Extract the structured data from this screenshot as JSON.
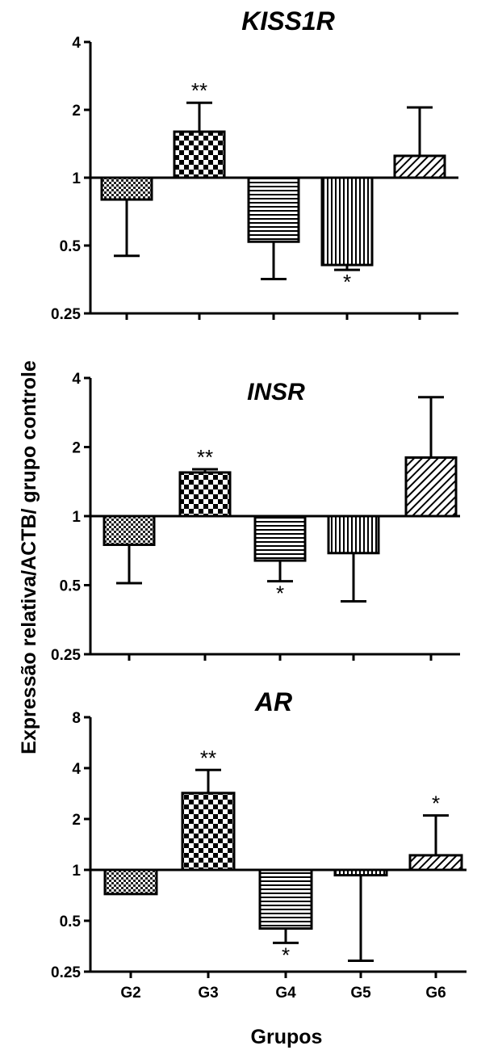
{
  "ylabel": "Expressão relativa/ACTB/ grupo controle",
  "xlabel": "Grupos",
  "chart_data": [
    {
      "type": "bar",
      "title": "KISS1R",
      "yscale": "log2",
      "ylim": [
        0.25,
        4
      ],
      "yticks": [
        "0.25",
        "0.5",
        "1",
        "2",
        "4"
      ],
      "baseline": 1,
      "categories": [
        "G2",
        "G3",
        "G4",
        "G5",
        "G6"
      ],
      "values": [
        0.8,
        1.6,
        0.52,
        0.41,
        1.25
      ],
      "error_ends": [
        0.45,
        2.15,
        0.355,
        0.39,
        2.05
      ],
      "significance": [
        "",
        "**",
        "",
        "*",
        ""
      ],
      "patterns": [
        "checker-fine",
        "checker",
        "hlines",
        "vlines",
        "diag"
      ]
    },
    {
      "type": "bar",
      "title": "INSR",
      "yscale": "log2",
      "ylim": [
        0.25,
        4
      ],
      "yticks": [
        "0.25",
        "0.5",
        "1",
        "2",
        "4"
      ],
      "baseline": 1,
      "categories": [
        "G2",
        "G3",
        "G4",
        "G5",
        "G6"
      ],
      "values": [
        0.75,
        1.55,
        0.64,
        0.69,
        1.8
      ],
      "error_ends": [
        0.51,
        1.6,
        0.52,
        0.425,
        3.3
      ],
      "significance": [
        "",
        "**",
        "*",
        "",
        ""
      ],
      "patterns": [
        "checker-fine",
        "checker",
        "hlines",
        "vlines",
        "diag"
      ]
    },
    {
      "type": "bar",
      "title": "AR",
      "yscale": "log2",
      "ylim": [
        0.25,
        8
      ],
      "yticks": [
        "0.25",
        "0.5",
        "1",
        "2",
        "4",
        "8"
      ],
      "baseline": 1,
      "categories": [
        "G2",
        "G3",
        "G4",
        "G5",
        "G6"
      ],
      "values": [
        0.72,
        2.85,
        0.45,
        0.93,
        1.22
      ],
      "error_ends": [
        null,
        3.9,
        0.37,
        0.29,
        2.1
      ],
      "significance": [
        "",
        "**",
        "*",
        "",
        "*"
      ],
      "patterns": [
        "checker-fine",
        "checker",
        "hlines",
        "vlines",
        "diag"
      ]
    }
  ]
}
